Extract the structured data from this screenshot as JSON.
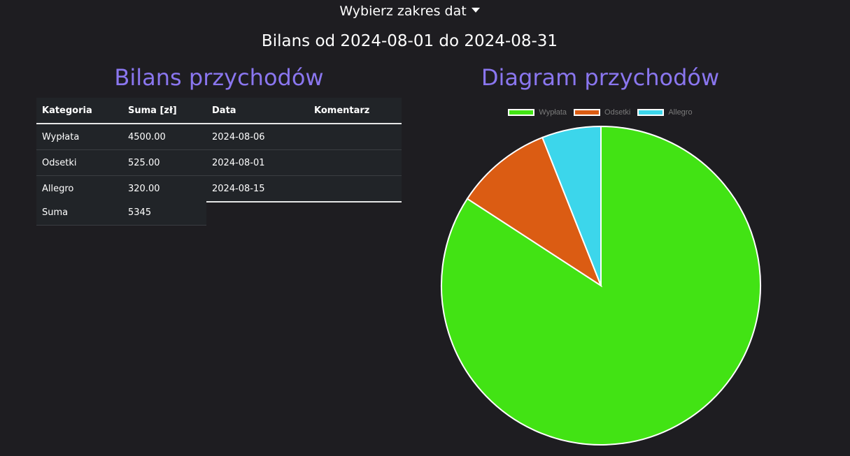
{
  "header": {
    "date_range_dropdown": "Wybierz zakres dat",
    "subtitle": "Bilans od 2024-08-01 do 2024-08-31"
  },
  "left": {
    "title": "Bilans przychodów",
    "table": {
      "headers": [
        "Kategoria",
        "Suma [zł]",
        "Data",
        "Komentarz"
      ],
      "rows": [
        [
          "Wypłata",
          "4500.00",
          "2024-08-06",
          ""
        ],
        [
          "Odsetki",
          "525.00",
          "2024-08-01",
          ""
        ],
        [
          "Allegro",
          "320.00",
          "2024-08-15",
          ""
        ]
      ]
    },
    "totals": {
      "label": "Suma",
      "value": "5345"
    }
  },
  "right": {
    "title": "Diagram przychodów"
  },
  "chart_data": {
    "type": "pie",
    "categories": [
      "Wypłata",
      "Odsetki",
      "Allegro"
    ],
    "values": [
      4500,
      525,
      320
    ],
    "colors": [
      "#42e314",
      "#db5c13",
      "#3cd6eb"
    ],
    "legend_position": "top"
  }
}
